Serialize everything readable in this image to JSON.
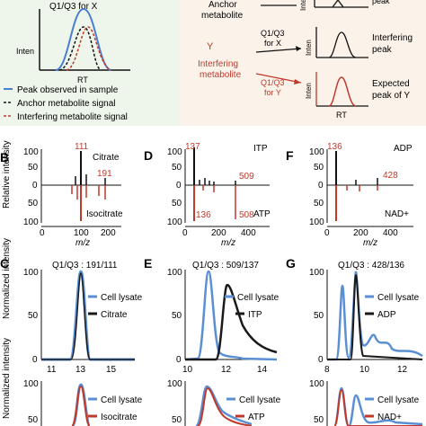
{
  "top_left": {
    "label_q1q3": "Q1/Q3 for X",
    "y_label": "Inten",
    "x_label": "RT",
    "legend": [
      "Peak observed in sample",
      "Anchor metabolite signal",
      "Interfering metabolite signal"
    ]
  },
  "top_right": {
    "anchor_label": "Anchor",
    "anchor_label2": "metabolite",
    "interfering_y": "Y",
    "interfering_label": "Interfering",
    "interfering_label2": "metabolite",
    "arrow1": "Q1/Q3",
    "arrow1b": "for X",
    "arrow2": "Q1/Q3",
    "arrow2b": "for Y",
    "peak_top": "peak",
    "peak_mid": "Interfering",
    "peak_mid2": "peak",
    "peak_bot": "Expected",
    "peak_bot2": "peak of Y",
    "y_label": "Inten",
    "x_label": "RT"
  },
  "panels_ms": [
    {
      "letter": "B",
      "top_name": "Citrate",
      "bottom_name": "Isocitrate",
      "label1": "111",
      "label2": "191",
      "xlabel": "m/z",
      "xticks": [
        "0",
        "100",
        "200"
      ]
    },
    {
      "letter": "D",
      "top_name": "ITP",
      "bottom_name": "ATP",
      "label1": "137",
      "label2": "509",
      "label3": "136",
      "label4": "508",
      "xlabel": "m/z",
      "xticks": [
        "0",
        "200",
        "400"
      ]
    },
    {
      "letter": "F",
      "top_name": "ADP",
      "bottom_name": "NAD+",
      "label1": "136",
      "label2": "428",
      "xlabel": "m/z",
      "xticks": [
        "0",
        "200",
        "400"
      ]
    }
  ],
  "ms_ylabel": "Relative intensity",
  "ms_yticks": [
    "100",
    "50",
    "0",
    "50",
    "100"
  ],
  "panels_lc": [
    {
      "letter": "C",
      "title": "Q1/Q3 : 191/111",
      "legend": [
        "Cell lysate",
        "Citrate"
      ],
      "xticks": [
        "11",
        "13",
        "15"
      ],
      "legend_b": [
        "Cell lysate",
        "Isocitrate"
      ]
    },
    {
      "letter": "E",
      "title": "Q1/Q3 : 509/137",
      "legend": [
        "Cell lysate",
        "ITP"
      ],
      "xticks": [
        "10",
        "12",
        "14"
      ],
      "legend_b": [
        "Cell lysate",
        "ATP"
      ]
    },
    {
      "letter": "G",
      "title": "Q1/Q3 : 428/136",
      "legend": [
        "Cell lysate",
        "ADP"
      ],
      "xticks": [
        "8",
        "10",
        "12"
      ],
      "legend_b": [
        "Cell lysate",
        "NAD+"
      ]
    }
  ],
  "lc_ylabel": "Normalized intensity",
  "lc_yticks": [
    "100",
    "50",
    "0"
  ],
  "colors": {
    "blue": "#5b8fd4",
    "red": "#c0392b",
    "black": "#1a1a1a",
    "panel_bg": "#fbf3ea",
    "left_bg": "#eef5ea"
  }
}
